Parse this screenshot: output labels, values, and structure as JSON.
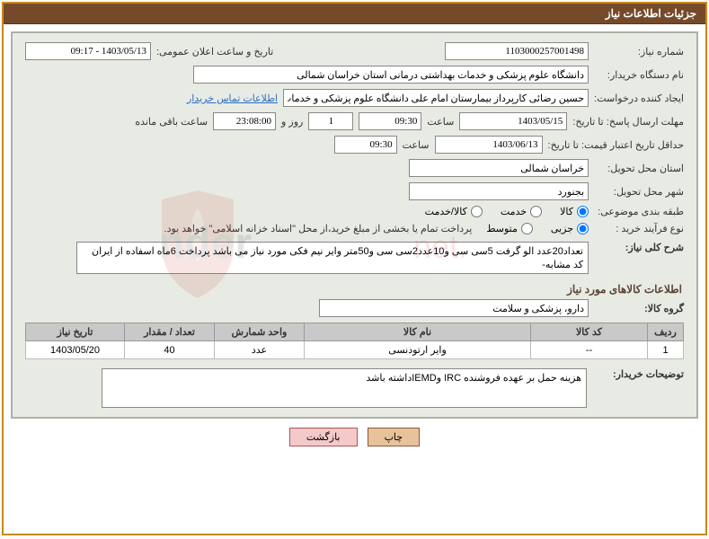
{
  "header": {
    "title": "جزئیات اطلاعات نیاز"
  },
  "fields": {
    "need_no_label": "شماره نیاز:",
    "need_no": "1103000257001498",
    "announce_label": "تاریخ و ساعت اعلان عمومی:",
    "announce_val": "1403/05/13 - 09:17",
    "buyer_org_label": "نام دستگاه خریدار:",
    "buyer_org": "دانشگاه علوم پزشکی و خدمات بهداشتی درمانی استان خراسان شمالی",
    "requester_label": "ایجاد کننده درخواست:",
    "requester": "حسین رضائی کارپرداز بیمارستان امام علی دانشگاه علوم پزشکی و خدمات بهد",
    "contact_link": "اطلاعات تماس خریدار",
    "deadline_label": "مهلت ارسال پاسخ: تا تاریخ:",
    "deadline_date": "1403/05/15",
    "hour_label": "ساعت",
    "deadline_time": "09:30",
    "days_val": "1",
    "days_unit": "روز و",
    "remain_time": "23:08:00",
    "remain_label": "ساعت باقی مانده",
    "validity_label": "حداقل تاریخ اعتبار قیمت: تا تاریخ:",
    "validity_date": "1403/06/13",
    "validity_time": "09:30",
    "province_label": "استان محل تحویل:",
    "province": "خراسان شمالی",
    "city_label": "شهر محل تحویل:",
    "city": "بجنورد",
    "category_label": "طبقه بندی موضوعی:",
    "cat_goods": "کالا",
    "cat_service": "خدمت",
    "cat_both": "کالا/خدمت",
    "process_label": "نوع فرآیند خرید :",
    "proc_partial": "جزیی",
    "proc_medium": "متوسط",
    "pay_note": "پرداخت تمام یا بخشی از مبلغ خرید،از محل \"اسناد خزانه اسلامی\" خواهد بود.",
    "desc_label": "شرح کلی نیاز:",
    "desc_text": "تعداد20عدد الو گرفت 5سی سی و10عدد2سی سی و50متر وایر نیم فکی مورد نیاز می باشد پرداخت 6ماه اسفاده از ایران کد مشابه-",
    "group_label": "گروه کالا:",
    "group_val": "دارو، پزشکی و سلامت",
    "buyer_notes_label": "توضیحات خریدار:",
    "buyer_notes": "هزینه حمل بر عهده فروشنده  IRC وIEMDداشته باشد"
  },
  "section_titles": {
    "goods": "اطلاعات کالاهای مورد نیاز"
  },
  "table": {
    "headers": [
      "ردیف",
      "کد کالا",
      "نام کالا",
      "واحد شمارش",
      "تعداد / مقدار",
      "تاریخ نیاز"
    ],
    "rows": [
      [
        "1",
        "--",
        "وایر ارتودنسی",
        "عدد",
        "40",
        "1403/05/20"
      ]
    ],
    "col_widths": [
      "40px",
      "130px",
      "auto",
      "100px",
      "100px",
      "110px"
    ]
  },
  "buttons": {
    "print": "چاپ",
    "back": "بازگشت"
  },
  "watermark": {
    "text_top": "AriaTender.net",
    "shield_color": "#c0392b",
    "text_color": "#555"
  },
  "colors": {
    "outer_border": "#c9891a",
    "header_bg": "#744a2a",
    "panel_bg": "#e8ebe4",
    "panel_border": "#adb1a7",
    "th_bg": "#c9c9c9"
  }
}
